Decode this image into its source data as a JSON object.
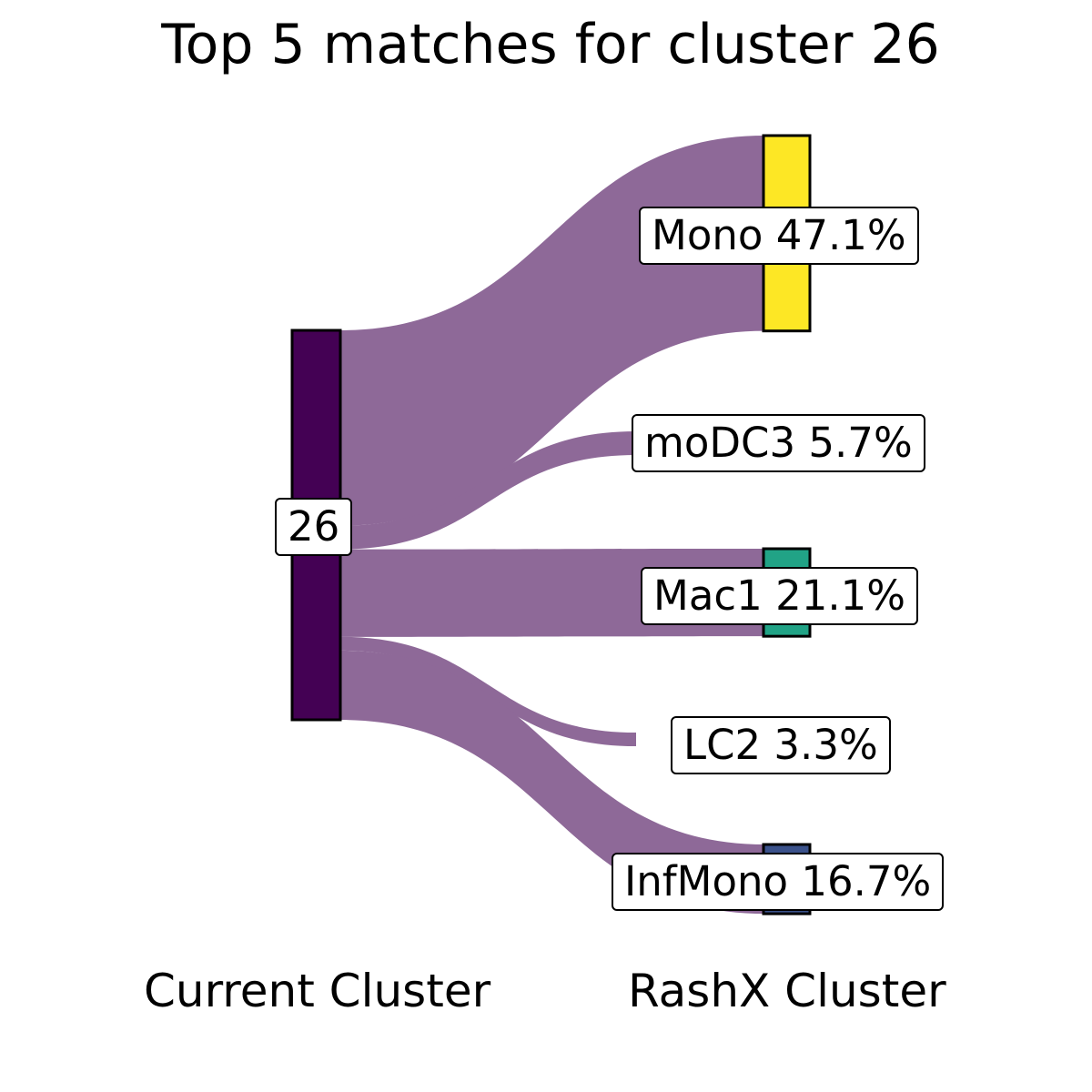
{
  "chart_data": {
    "type": "sankey",
    "title": "Top 5 matches for cluster 26",
    "axis_labels": [
      "Current Cluster",
      "RashX Cluster"
    ],
    "source": {
      "name": "26",
      "color": "#440154"
    },
    "link_color": "#8E6998",
    "targets": [
      {
        "name": "Mono",
        "percent": 47.1,
        "label": "Mono 47.1%",
        "color": "#FDE725"
      },
      {
        "name": "moDC3",
        "percent": 5.7,
        "label": "moDC3 5.7%",
        "color": "#8E6998"
      },
      {
        "name": "Mac1",
        "percent": 21.1,
        "label": "Mac1 21.1%",
        "color": "#21A386"
      },
      {
        "name": "LC2",
        "percent": 3.3,
        "label": "LC2 3.3%",
        "color": "#8E6998"
      },
      {
        "name": "InfMono",
        "percent": 16.7,
        "label": "InfMono 16.7%",
        "color": "#3B528B"
      }
    ]
  }
}
